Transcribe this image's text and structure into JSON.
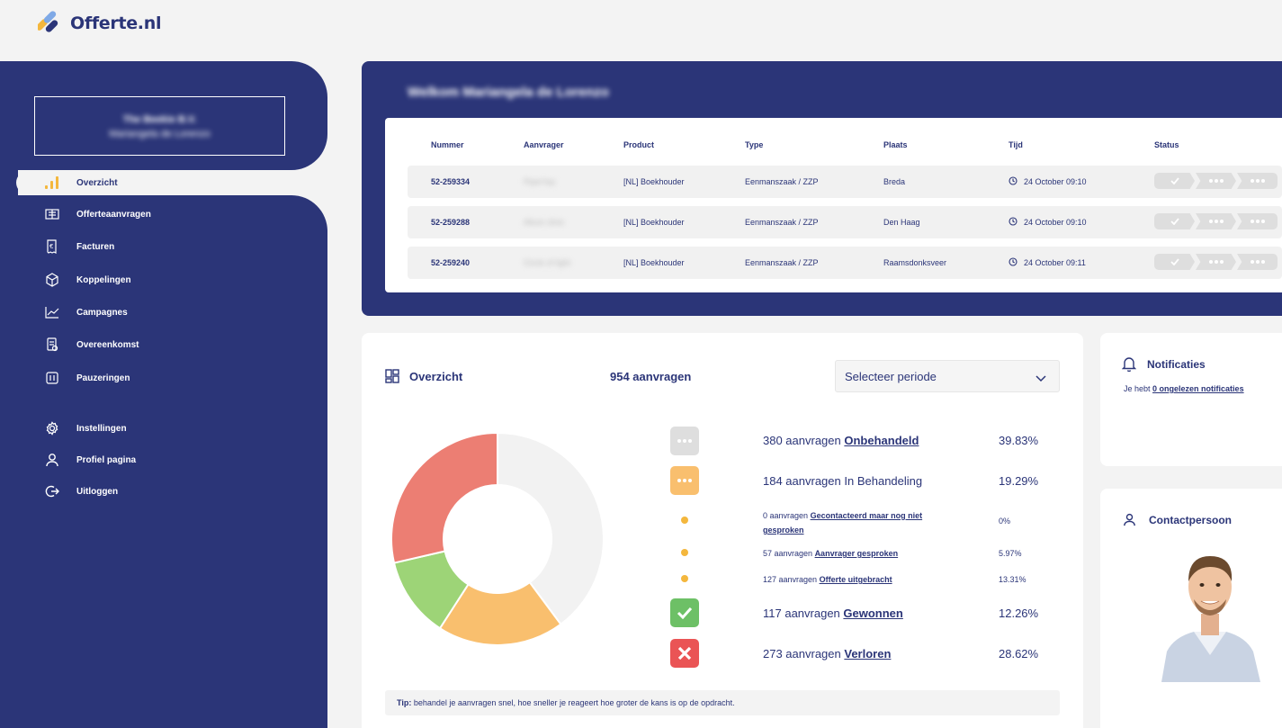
{
  "brand": {
    "name": "Offerte.nl"
  },
  "profile": {
    "company": "The Beekie B.V.",
    "person": "Mariangela de Lorenzo"
  },
  "nav": {
    "items": [
      {
        "label": "Overzicht",
        "icon": "bar-chart-icon",
        "active": true
      },
      {
        "label": "Offerteaanvragen",
        "icon": "requests-icon"
      },
      {
        "label": "Facturen",
        "icon": "invoice-icon"
      },
      {
        "label": "Koppelingen",
        "icon": "cube-icon"
      },
      {
        "label": "Campagnes",
        "icon": "line-chart-icon"
      },
      {
        "label": "Overeenkomst",
        "icon": "agreement-icon"
      },
      {
        "label": "Pauzeringen",
        "icon": "pause-icon"
      }
    ],
    "secondary": [
      {
        "label": "Instellingen",
        "icon": "gear-icon"
      },
      {
        "label": "Profiel pagina",
        "icon": "user-icon"
      },
      {
        "label": "Uitloggen",
        "icon": "logout-icon"
      }
    ]
  },
  "welcome": {
    "title": "Welkom Mariangela de Lorenzo",
    "columns": [
      "Nummer",
      "Aanvrager",
      "Product",
      "Type",
      "Plaats",
      "Tijd",
      "Status"
    ],
    "rows": [
      {
        "nummer": "52-259334",
        "aanvrager": "Piper'top",
        "product": "[NL] Boekhouder",
        "type": "Eenmanszaak / ZZP",
        "plaats": "Breda",
        "tijd": "24 October 09:10"
      },
      {
        "nummer": "52-259288",
        "aanvrager": "Allure clinic",
        "product": "[NL] Boekhouder",
        "type": "Eenmanszaak / ZZP",
        "plaats": "Den Haag",
        "tijd": "24 October 09:10"
      },
      {
        "nummer": "52-259240",
        "aanvrager": "Circle of light",
        "product": "[NL] Boekhouder",
        "type": "Eenmanszaak / ZZP",
        "plaats": "Raamsdonksveer",
        "tijd": "24 October 09:11"
      }
    ]
  },
  "overview": {
    "title": "Overzicht",
    "count": "954 aanvragen",
    "period_select": "Selecteer periode",
    "legend": [
      {
        "count": "380 aanvragen",
        "label": "Onbehandeld",
        "pct": "39.83%"
      },
      {
        "count": "184 aanvragen",
        "label": "In Behandeling",
        "pct": "19.29%"
      },
      {
        "count": "0 aanvragen",
        "label": "Gecontacteerd maar nog niet gesproken",
        "pct": "0%"
      },
      {
        "count": "57 aanvragen",
        "label": "Aanvrager gesproken",
        "pct": "5.97%"
      },
      {
        "count": "127 aanvragen",
        "label": "Offerte uitgebracht",
        "pct": "13.31%"
      },
      {
        "count": "117 aanvragen",
        "label": "Gewonnen",
        "pct": "12.26%"
      },
      {
        "count": "273 aanvragen",
        "label": "Verloren",
        "pct": "28.62%"
      }
    ],
    "tip_label": "Tip:",
    "tip_text": "behandel je aanvragen snel, hoe sneller je reageert hoe groter de kans is op de opdracht."
  },
  "chart_data": {
    "type": "pie",
    "categories": [
      "Onbehandeld",
      "In Behandeling",
      "Gewonnen",
      "Verloren"
    ],
    "values": [
      380,
      184,
      117,
      273
    ],
    "colors": [
      "#f2f2f2",
      "#f9bf6e",
      "#9dd477",
      "#ec7e73"
    ]
  },
  "notifications": {
    "title": "Notificaties",
    "text_prefix": "Je hebt",
    "link": "0 ongelezen notificaties"
  },
  "contact": {
    "title": "Contactpersoon"
  },
  "colors": {
    "primary": "#2b3578",
    "accent": "#f4b73d",
    "won": "#6dc066",
    "lost": "#ea5455"
  }
}
